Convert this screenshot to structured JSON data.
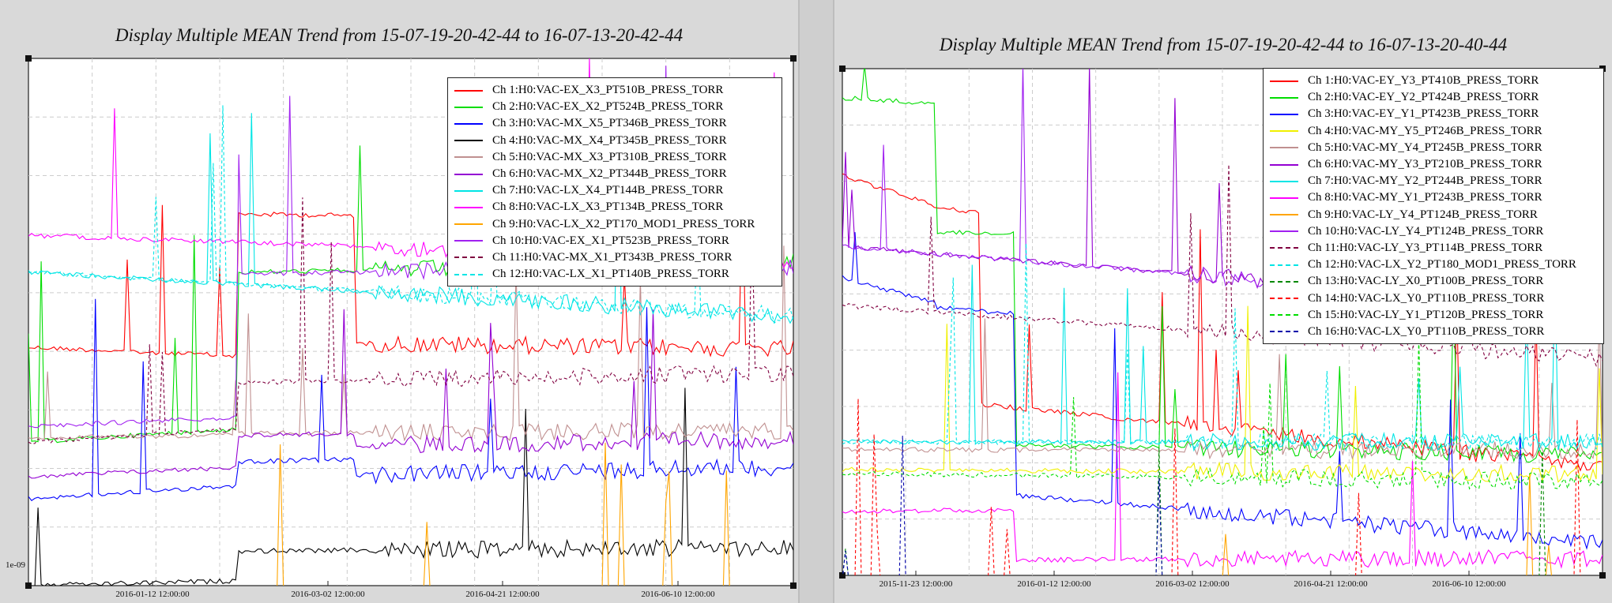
{
  "chart_data": [
    {
      "type": "line",
      "title": "Display Multiple MEAN Trend from 15-07-19-20-42-44 to 16-07-13-20-42-44",
      "xlabel": "",
      "ylabel": "",
      "yscale": "log",
      "x_ticks": [
        "2016-01-12 12:00:00",
        "2016-03-02 12:00:00",
        "2016-04-21 12:00:00",
        "2016-06-10 12:00:00"
      ],
      "y_ticks": [
        "1e-09"
      ],
      "grid": true,
      "legend_position": "top-right",
      "series": [
        {
          "name": "Ch 1:H0:VAC-EX_X3_PT510B_PRESS_TORR",
          "color": "#ff0000",
          "dash": "solid"
        },
        {
          "name": "Ch 2:H0:VAC-EX_X2_PT524B_PRESS_TORR",
          "color": "#00dd00",
          "dash": "solid"
        },
        {
          "name": "Ch 3:H0:VAC-MX_X5_PT346B_PRESS_TORR",
          "color": "#0000ff",
          "dash": "solid"
        },
        {
          "name": "Ch 4:H0:VAC-MX_X4_PT345B_PRESS_TORR",
          "color": "#000000",
          "dash": "solid"
        },
        {
          "name": "Ch 5:H0:VAC-MX_X3_PT310B_PRESS_TORR",
          "color": "#c09090",
          "dash": "solid"
        },
        {
          "name": "Ch 6:H0:VAC-MX_X2_PT344B_PRESS_TORR",
          "color": "#9400d3",
          "dash": "solid"
        },
        {
          "name": "Ch 7:H0:VAC-LX_X4_PT144B_PRESS_TORR",
          "color": "#00e5e5",
          "dash": "solid"
        },
        {
          "name": "Ch 8:H0:VAC-LX_X3_PT134B_PRESS_TORR",
          "color": "#ff00ff",
          "dash": "solid"
        },
        {
          "name": "Ch 9:H0:VAC-LX_X2_PT170_MOD1_PRESS_TORR",
          "color": "#ffa500",
          "dash": "solid"
        },
        {
          "name": "Ch 10:H0:VAC-EX_X1_PT523B_PRESS_TORR",
          "color": "#a020f0",
          "dash": "solid"
        },
        {
          "name": "Ch 11:H0:VAC-MX_X1_PT343B_PRESS_TORR",
          "color": "#800040",
          "dash": "dashed"
        },
        {
          "name": "Ch 12:H0:VAC-LX_X1_PT140B_PRESS_TORR",
          "color": "#00e5e5",
          "dash": "dashed"
        }
      ]
    },
    {
      "type": "line",
      "title": "Display Multiple MEAN Trend from 15-07-19-20-42-44 to 16-07-13-20-40-44",
      "xlabel": "",
      "ylabel": "",
      "yscale": "log",
      "x_ticks": [
        "2015-11-23 12:00:00",
        "2016-01-12 12:00:00",
        "2016-03-02 12:00:00",
        "2016-04-21 12:00:00",
        "2016-06-10 12:00:00"
      ],
      "grid": true,
      "legend_position": "top-right",
      "series": [
        {
          "name": "Ch 1:H0:VAC-EY_Y3_PT410B_PRESS_TORR",
          "color": "#ff0000",
          "dash": "solid"
        },
        {
          "name": "Ch 2:H0:VAC-EY_Y2_PT424B_PRESS_TORR",
          "color": "#00dd00",
          "dash": "solid"
        },
        {
          "name": "Ch 3:H0:VAC-EY_Y1_PT423B_PRESS_TORR",
          "color": "#0000ff",
          "dash": "solid"
        },
        {
          "name": "Ch 4:H0:VAC-MY_Y5_PT246B_PRESS_TORR",
          "color": "#f0f000",
          "dash": "solid"
        },
        {
          "name": "Ch 5:H0:VAC-MY_Y4_PT245B_PRESS_TORR",
          "color": "#c09090",
          "dash": "solid"
        },
        {
          "name": "Ch 6:H0:VAC-MY_Y3_PT210B_PRESS_TORR",
          "color": "#9400d3",
          "dash": "solid"
        },
        {
          "name": "Ch 7:H0:VAC-MY_Y2_PT244B_PRESS_TORR",
          "color": "#00e5e5",
          "dash": "solid"
        },
        {
          "name": "Ch 8:H0:VAC-MY_Y1_PT243B_PRESS_TORR",
          "color": "#ff00ff",
          "dash": "solid"
        },
        {
          "name": "Ch 9:H0:VAC-LY_Y4_PT124B_PRESS_TORR",
          "color": "#ffa500",
          "dash": "solid"
        },
        {
          "name": "Ch 10:H0:VAC-LY_Y4_PT124B_PRESS_TORR",
          "color": "#a020f0",
          "dash": "solid"
        },
        {
          "name": "Ch 11:H0:VAC-LY_Y3_PT114B_PRESS_TORR",
          "color": "#800040",
          "dash": "dashed"
        },
        {
          "name": "Ch 12:H0:VAC-LX_Y2_PT180_MOD1_PRESS_TORR",
          "color": "#00e5e5",
          "dash": "dashed"
        },
        {
          "name": "Ch 13:H0:VAC-LY_X0_PT100B_PRESS_TORR",
          "color": "#008800",
          "dash": "dashed"
        },
        {
          "name": "Ch 14:H0:VAC-LX_Y0_PT110B_PRESS_TORR",
          "color": "#ff0000",
          "dash": "dashed"
        },
        {
          "name": "Ch 15:H0:VAC-LY_Y1_PT120B_PRESS_TORR",
          "color": "#00dd00",
          "dash": "dashed"
        },
        {
          "name": "Ch 16:H0:VAC-LX_Y0_PT110B_PRESS_TORR",
          "color": "#0000aa",
          "dash": "dashed"
        }
      ]
    }
  ]
}
